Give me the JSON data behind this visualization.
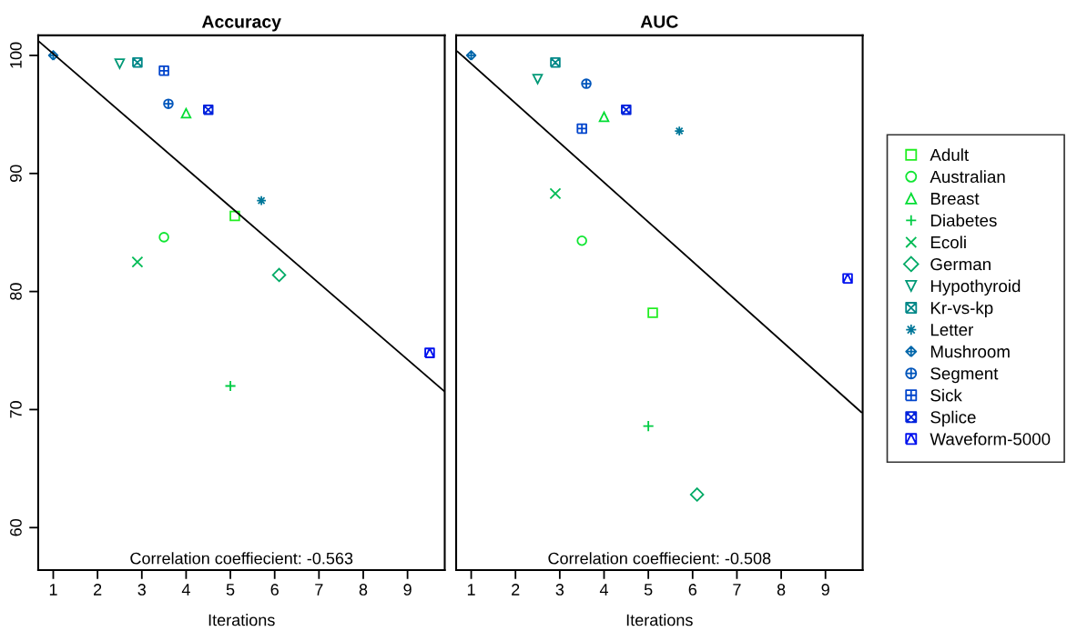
{
  "chart_data": [
    {
      "type": "scatter",
      "title": "Accuracy",
      "xlabel": "Iterations",
      "annotations": [
        "Correlation coeffiecient: -0.563"
      ],
      "xlim": [
        0.66,
        9.84
      ],
      "xticks": [
        1,
        2,
        3,
        4,
        5,
        6,
        7,
        8,
        9
      ],
      "ylim": [
        56.4,
        101.7
      ],
      "yticks": [
        60,
        70,
        80,
        90,
        100
      ],
      "legend": "right",
      "series": [
        {
          "name": "Adult",
          "color": "#22ee22",
          "marker": "square",
          "x": [
            5.1
          ],
          "values": [
            86.4
          ]
        },
        {
          "name": "Australian",
          "color": "#11e633",
          "marker": "circle",
          "x": [
            3.5
          ],
          "values": [
            84.6
          ]
        },
        {
          "name": "Breast",
          "color": "#00dd33",
          "marker": "triangle",
          "x": [
            4.0
          ],
          "values": [
            95.1
          ]
        },
        {
          "name": "Diabetes",
          "color": "#00cc44",
          "x": [
            5.0
          ],
          "values": [
            72.0
          ]
        },
        {
          "name": "Ecoli",
          "color": "#00bb55",
          "marker": "cross",
          "x": [
            2.9
          ],
          "values": [
            82.5
          ]
        },
        {
          "name": "German",
          "color": "#00aa66",
          "marker": "diamond",
          "x": [
            6.1
          ],
          "values": [
            81.4
          ]
        },
        {
          "name": "Hypothyroid",
          "color": "#009977",
          "x": [
            2.5
          ],
          "values": [
            99.3
          ]
        },
        {
          "name": "Kr-vs-kp",
          "color": "#008888",
          "x": [
            2.9
          ],
          "values": [
            99.4
          ]
        },
        {
          "name": "Letter",
          "color": "#007799",
          "x": [
            5.7
          ],
          "values": [
            87.7
          ]
        },
        {
          "name": "Mushroom",
          "color": "#0066aa",
          "x": [
            1.0
          ],
          "values": [
            100.0
          ]
        },
        {
          "name": "Segment",
          "color": "#0055bb",
          "x": [
            3.6
          ],
          "values": [
            95.9
          ]
        },
        {
          "name": "Sick",
          "color": "#0044cc",
          "x": [
            3.5
          ],
          "values": [
            98.7
          ]
        },
        {
          "name": "Splice",
          "color": "#0022dd",
          "x": [
            4.5
          ],
          "values": [
            95.4
          ]
        },
        {
          "name": "Waveform-5000",
          "color": "#0011ee",
          "x": [
            9.5
          ],
          "values": [
            74.8
          ]
        },
        {
          "type": "line",
          "color": "#000000",
          "marker": "none",
          "x": [
            0.66,
            9.84
          ],
          "values": [
            101.23,
            71.51
          ]
        }
      ]
    },
    {
      "type": "scatter",
      "title": "AUC",
      "xlabel": "Iterations",
      "annotations": [
        "Correlation coeffiecient: -0.508"
      ],
      "xlim": [
        0.66,
        9.84
      ],
      "xticks": [
        1,
        2,
        3,
        4,
        5,
        6,
        7,
        8,
        9
      ],
      "ylim": [
        56.4,
        101.7
      ],
      "tick_labels": "x",
      "series": [
        {
          "color": "#22ee22",
          "marker": "square",
          "x": [
            5.1
          ],
          "values": [
            78.2
          ]
        },
        {
          "color": "#11e633",
          "marker": "circle",
          "x": [
            3.5
          ],
          "values": [
            84.3
          ]
        },
        {
          "color": "#00dd33",
          "marker": "triangle",
          "x": [
            4.0
          ],
          "values": [
            94.8
          ]
        },
        {
          "color": "#00cc44",
          "x": [
            5.0
          ],
          "values": [
            68.6
          ]
        },
        {
          "color": "#00bb55",
          "marker": "cross",
          "x": [
            2.9
          ],
          "values": [
            88.3
          ]
        },
        {
          "color": "#00aa66",
          "marker": "diamond",
          "x": [
            6.1
          ],
          "values": [
            62.8
          ]
        },
        {
          "color": "#009977",
          "x": [
            2.5
          ],
          "values": [
            98.0
          ]
        },
        {
          "color": "#008888",
          "x": [
            2.9
          ],
          "values": [
            99.4
          ]
        },
        {
          "color": "#007799",
          "x": [
            5.7
          ],
          "values": [
            93.6
          ]
        },
        {
          "color": "#0066aa",
          "x": [
            1.0
          ],
          "values": [
            100.0
          ]
        },
        {
          "color": "#0055bb",
          "x": [
            3.6
          ],
          "values": [
            97.6
          ]
        },
        {
          "color": "#0044cc",
          "x": [
            3.5
          ],
          "values": [
            93.8
          ]
        },
        {
          "color": "#0022dd",
          "x": [
            4.5
          ],
          "values": [
            95.4
          ]
        },
        {
          "color": "#0011ee",
          "x": [
            9.5
          ],
          "values": [
            81.1
          ]
        },
        {
          "type": "line",
          "color": "#000000",
          "marker": "none",
          "x": [
            0.69,
            9.81
          ],
          "values": [
            100.33,
            69.77
          ]
        }
      ]
    }
  ]
}
